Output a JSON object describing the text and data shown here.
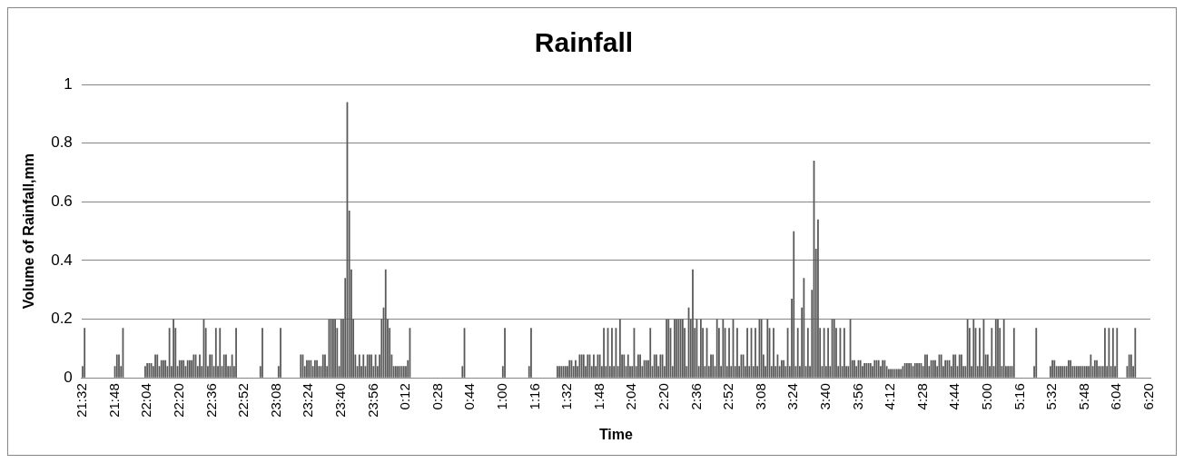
{
  "chart_data": {
    "type": "bar",
    "title": "Rainfall",
    "xlabel": "Time",
    "ylabel": "Volume of Rainfall,mm",
    "categories": [
      "21:32",
      null,
      null,
      null,
      null,
      null,
      null,
      null,
      null,
      null,
      null,
      null,
      null,
      null,
      null,
      null,
      "21:48",
      null,
      null,
      null,
      null,
      null,
      null,
      null,
      null,
      null,
      null,
      null,
      null,
      null,
      null,
      null,
      "22:04",
      null,
      null,
      null,
      null,
      null,
      null,
      null,
      null,
      null,
      null,
      null,
      null,
      null,
      null,
      null,
      "22:20",
      null,
      null,
      null,
      null,
      null,
      null,
      null,
      null,
      null,
      null,
      null,
      null,
      null,
      null,
      null,
      "22:36",
      null,
      null,
      null,
      null,
      null,
      null,
      null,
      null,
      null,
      null,
      null,
      null,
      null,
      null,
      null,
      "22:52",
      null,
      null,
      null,
      null,
      null,
      null,
      null,
      null,
      null,
      null,
      null,
      null,
      null,
      null,
      null,
      "23:08",
      null,
      null,
      null,
      null,
      null,
      null,
      null,
      null,
      null,
      null,
      null,
      null,
      null,
      null,
      null,
      "23:24",
      null,
      null,
      null,
      null,
      null,
      null,
      null,
      null,
      null,
      null,
      null,
      null,
      null,
      null,
      null,
      "23:40",
      null,
      null,
      null,
      null,
      null,
      null,
      null,
      null,
      null,
      null,
      null,
      null,
      null,
      null,
      null,
      "23:56",
      null,
      null,
      null,
      null,
      null,
      null,
      null,
      null,
      null,
      null,
      null,
      null,
      null,
      null,
      null,
      "0:12",
      null,
      null,
      null,
      null,
      null,
      null,
      null,
      null,
      null,
      null,
      null,
      null,
      null,
      null,
      null,
      "0:28",
      null,
      null,
      null,
      null,
      null,
      null,
      null,
      null,
      null,
      null,
      null,
      null,
      null,
      null,
      null,
      "0:44",
      null,
      null,
      null,
      null,
      null,
      null,
      null,
      null,
      null,
      null,
      null,
      null,
      null,
      null,
      null,
      "1:00",
      null,
      null,
      null,
      null,
      null,
      null,
      null,
      null,
      null,
      null,
      null,
      null,
      null,
      null,
      null,
      "1:16",
      null,
      null,
      null,
      null,
      null,
      null,
      null,
      null,
      null,
      null,
      null,
      null,
      null,
      null,
      null,
      "1:32",
      null,
      null,
      null,
      null,
      null,
      null,
      null,
      null,
      null,
      null,
      null,
      null,
      null,
      null,
      null,
      "1:48",
      null,
      null,
      null,
      null,
      null,
      null,
      null,
      null,
      null,
      null,
      null,
      null,
      null,
      null,
      null,
      "2:04",
      null,
      null,
      null,
      null,
      null,
      null,
      null,
      null,
      null,
      null,
      null,
      null,
      null,
      null,
      null,
      "2:20",
      null,
      null,
      null,
      null,
      null,
      null,
      null,
      null,
      null,
      null,
      null,
      null,
      null,
      null,
      null,
      "2:36",
      null,
      null,
      null,
      null,
      null,
      null,
      null,
      null,
      null,
      null,
      null,
      null,
      null,
      null,
      null,
      "2:52",
      null,
      null,
      null,
      null,
      null,
      null,
      null,
      null,
      null,
      null,
      null,
      null,
      null,
      null,
      null,
      "3:08",
      null,
      null,
      null,
      null,
      null,
      null,
      null,
      null,
      null,
      null,
      null,
      null,
      null,
      null,
      null,
      "3:24",
      null,
      null,
      null,
      null,
      null,
      null,
      null,
      null,
      null,
      null,
      null,
      null,
      null,
      null,
      null,
      "3:40",
      null,
      null,
      null,
      null,
      null,
      null,
      null,
      null,
      null,
      null,
      null,
      null,
      null,
      null,
      null,
      "3:56",
      null,
      null,
      null,
      null,
      null,
      null,
      null,
      null,
      null,
      null,
      null,
      null,
      null,
      null,
      null,
      "4:12",
      null,
      null,
      null,
      null,
      null,
      null,
      null,
      null,
      null,
      null,
      null,
      null,
      null,
      null,
      null,
      "4:28",
      null,
      null,
      null,
      null,
      null,
      null,
      null,
      null,
      null,
      null,
      null,
      null,
      null,
      null,
      null,
      "4:44",
      null,
      null,
      null,
      null,
      null,
      null,
      null,
      null,
      null,
      null,
      null,
      null,
      null,
      null,
      null,
      "5:00",
      null,
      null,
      null,
      null,
      null,
      null,
      null,
      null,
      null,
      null,
      null,
      null,
      null,
      null,
      null,
      "5:16",
      null,
      null,
      null,
      null,
      null,
      null,
      null,
      null,
      null,
      null,
      null,
      null,
      null,
      null,
      null,
      "5:32",
      null,
      null,
      null,
      null,
      null,
      null,
      null,
      null,
      null,
      null,
      null,
      null,
      null,
      null,
      null,
      "5:48",
      null,
      null,
      null,
      null,
      null,
      null,
      null,
      null,
      null,
      null,
      null,
      null,
      null,
      null,
      null,
      "6:04",
      null,
      null,
      null,
      null,
      null,
      null,
      null,
      null,
      null,
      null,
      null,
      null,
      null,
      null,
      null,
      "6:20"
    ],
    "values": [
      0.04,
      0.17,
      0,
      0,
      0,
      0,
      0,
      0,
      0,
      0,
      0,
      0,
      0,
      0,
      0,
      0,
      0.04,
      0.08,
      0.08,
      0.04,
      0.17,
      0,
      0,
      0,
      0,
      0,
      0,
      0,
      0,
      0,
      0,
      0.04,
      0.05,
      0.05,
      0.05,
      0.04,
      0.08,
      0.08,
      0.04,
      0.06,
      0.06,
      0.06,
      0.04,
      0.17,
      0.04,
      0.2,
      0.17,
      0.04,
      0.06,
      0.06,
      0.06,
      0.04,
      0.06,
      0.06,
      0.06,
      0.08,
      0.08,
      0.04,
      0.08,
      0.04,
      0.2,
      0.17,
      0.04,
      0.08,
      0.08,
      0.04,
      0.17,
      0.04,
      0.17,
      0.04,
      0.08,
      0.08,
      0.04,
      0.04,
      0.08,
      0.04,
      0.17,
      0,
      0,
      0,
      0,
      0,
      0,
      0,
      0,
      0,
      0,
      0,
      0.04,
      0.17,
      0,
      0,
      0,
      0,
      0,
      0,
      0,
      0.04,
      0.17,
      0,
      0,
      0,
      0,
      0,
      0,
      0,
      0,
      0,
      0.08,
      0.08,
      0.04,
      0.06,
      0.06,
      0.06,
      0.04,
      0.06,
      0.06,
      0.04,
      0.04,
      0.08,
      0.08,
      0.04,
      0.2,
      0.2,
      0.2,
      0.2,
      0.17,
      0.04,
      0.2,
      0.2,
      0.34,
      0.94,
      0.57,
      0.37,
      0.2,
      0.08,
      0.04,
      0.08,
      0.04,
      0.08,
      0.04,
      0.08,
      0.08,
      0.08,
      0.04,
      0.08,
      0.04,
      0.08,
      0.2,
      0.24,
      0.37,
      0.2,
      0.17,
      0.08,
      0.04,
      0.04,
      0.04,
      0.04,
      0.04,
      0.04,
      0.04,
      0.06,
      0.17,
      0,
      0,
      0,
      0,
      0,
      0,
      0,
      0,
      0,
      0,
      0,
      0,
      0,
      0,
      0,
      0,
      0,
      0,
      0,
      0,
      0,
      0,
      0,
      0,
      0,
      0.04,
      0.17,
      0,
      0,
      0,
      0,
      0,
      0,
      0,
      0,
      0,
      0,
      0,
      0,
      0,
      0,
      0,
      0,
      0,
      0,
      0.04,
      0.17,
      0,
      0,
      0,
      0,
      0,
      0,
      0,
      0,
      0,
      0,
      0,
      0.04,
      0.17,
      0,
      0,
      0,
      0,
      0,
      0,
      0,
      0,
      0,
      0,
      0,
      0,
      0.04,
      0.04,
      0.04,
      0.04,
      0.04,
      0.04,
      0.06,
      0.06,
      0.04,
      0.06,
      0.04,
      0.08,
      0.08,
      0.08,
      0.04,
      0.08,
      0.08,
      0.04,
      0.08,
      0.04,
      0.08,
      0.08,
      0.04,
      0.17,
      0.04,
      0.17,
      0.04,
      0.17,
      0.04,
      0.17,
      0.04,
      0.2,
      0.08,
      0.08,
      0.04,
      0.08,
      0.04,
      0.04,
      0.17,
      0.04,
      0.08,
      0.08,
      0.04,
      0.06,
      0.06,
      0.06,
      0.17,
      0.04,
      0.08,
      0.08,
      0.04,
      0.08,
      0.08,
      0.04,
      0.2,
      0.2,
      0.17,
      0.04,
      0.2,
      0.2,
      0.2,
      0.2,
      0.2,
      0.17,
      0.04,
      0.24,
      0.2,
      0.37,
      0.17,
      0.2,
      0.04,
      0.2,
      0.17,
      0.04,
      0.17,
      0.04,
      0.08,
      0.08,
      0.04,
      0.2,
      0.17,
      0.04,
      0.2,
      0.17,
      0.04,
      0.17,
      0.04,
      0.2,
      0.04,
      0.17,
      0.04,
      0.08,
      0.08,
      0.04,
      0.17,
      0.04,
      0.17,
      0.04,
      0.17,
      0.04,
      0.2,
      0.2,
      0.08,
      0.04,
      0.2,
      0.17,
      0.04,
      0.17,
      0.04,
      0.08,
      0.04,
      0.06,
      0.06,
      0.04,
      0.17,
      0.04,
      0.27,
      0.5,
      0.04,
      0.17,
      0.04,
      0.24,
      0.34,
      0.04,
      0.17,
      0.04,
      0.3,
      0.74,
      0.44,
      0.54,
      0.17,
      0.04,
      0.17,
      0.04,
      0.17,
      0.04,
      0.2,
      0.2,
      0.17,
      0.04,
      0.17,
      0.04,
      0.17,
      0.04,
      0.04,
      0.2,
      0.06,
      0.06,
      0.04,
      0.06,
      0.06,
      0.04,
      0.05,
      0.05,
      0.05,
      0.05,
      0.04,
      0.06,
      0.06,
      0.06,
      0.04,
      0.06,
      0.06,
      0.04,
      0.03,
      0.03,
      0.03,
      0.03,
      0.03,
      0.03,
      0.03,
      0.04,
      0.05,
      0.05,
      0.05,
      0.05,
      0.04,
      0.05,
      0.05,
      0.05,
      0.05,
      0.04,
      0.08,
      0.08,
      0.04,
      0.06,
      0.06,
      0.06,
      0.04,
      0.08,
      0.08,
      0.04,
      0.06,
      0.06,
      0.06,
      0.04,
      0.08,
      0.08,
      0.04,
      0.08,
      0.08,
      0.04,
      0.04,
      0.2,
      0.17,
      0.04,
      0.2,
      0.17,
      0.04,
      0.17,
      0.04,
      0.2,
      0.08,
      0.08,
      0.04,
      0.17,
      0.04,
      0.2,
      0.2,
      0.17,
      0.04,
      0.2,
      0.04,
      0.04,
      0.04,
      0.04,
      0.17,
      0,
      0,
      0,
      0,
      0,
      0,
      0,
      0,
      0,
      0.04,
      0.17,
      0,
      0,
      0,
      0,
      0,
      0,
      0.04,
      0.06,
      0.06,
      0.04,
      0.04,
      0.04,
      0.04,
      0.04,
      0.04,
      0.06,
      0.06,
      0.04,
      0.04,
      0.04,
      0.04,
      0.04,
      0.04,
      0.04,
      0.04,
      0.04,
      0.08,
      0.04,
      0.06,
      0.06,
      0.04,
      0.04,
      0.04,
      0.17,
      0.04,
      0.17,
      0.04,
      0.17,
      0.04,
      0.17,
      0,
      0,
      0,
      0,
      0.04,
      0.08,
      0.08,
      0.04,
      0.17,
      0,
      0,
      0,
      0,
      0,
      0,
      0
    ],
    "color": "#595959",
    "ylim": [
      0,
      1
    ],
    "yticks": [
      0,
      0.2,
      0.4,
      0.6,
      0.8,
      1
    ],
    "grid": "y"
  }
}
